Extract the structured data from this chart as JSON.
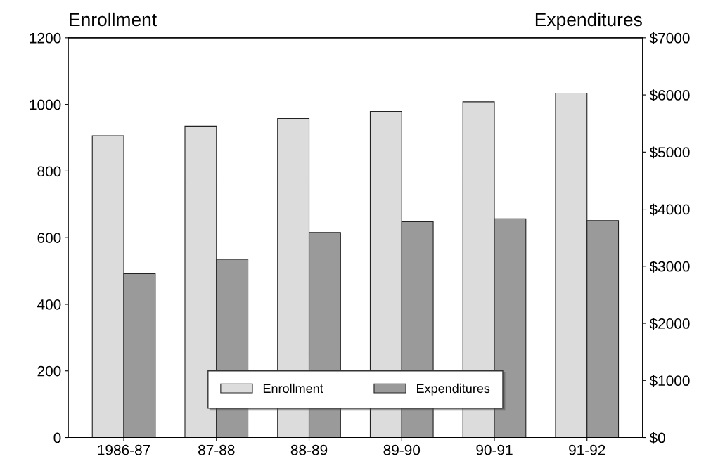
{
  "chart_data": {
    "type": "bar",
    "ylabel": "Enrollment",
    "y2label": "Expenditures",
    "categories": [
      "1986-87",
      "87-88",
      "88-89",
      "89-90",
      "90-91",
      "91-92"
    ],
    "series": [
      {
        "name": "Enrollment",
        "color": "#dcdcdc",
        "values": [
          906,
          935,
          958,
          979,
          1008,
          1034
        ]
      },
      {
        "name": "Expenditures",
        "color": "#9a9a9a",
        "axis": "y2",
        "values": [
          2870,
          3120,
          3590,
          3780,
          3830,
          3800
        ]
      }
    ],
    "ylim": [
      0,
      1200
    ],
    "yticks": [
      0,
      200,
      400,
      600,
      800,
      1000,
      1200
    ],
    "y2lim": [
      0,
      7000
    ],
    "y2ticks": [
      {
        "value": 0,
        "label": "$0"
      },
      {
        "value": 1000,
        "label": "$1000"
      },
      {
        "value": 2000,
        "label": "$2000"
      },
      {
        "value": 3000,
        "label": "$3000"
      },
      {
        "value": 4000,
        "label": "$4000"
      },
      {
        "value": 5000,
        "label": "$5000"
      },
      {
        "value": 6000,
        "label": "$6000"
      },
      {
        "value": 7000,
        "label": "$7000"
      }
    ],
    "grid": false,
    "legend": "bottom"
  }
}
